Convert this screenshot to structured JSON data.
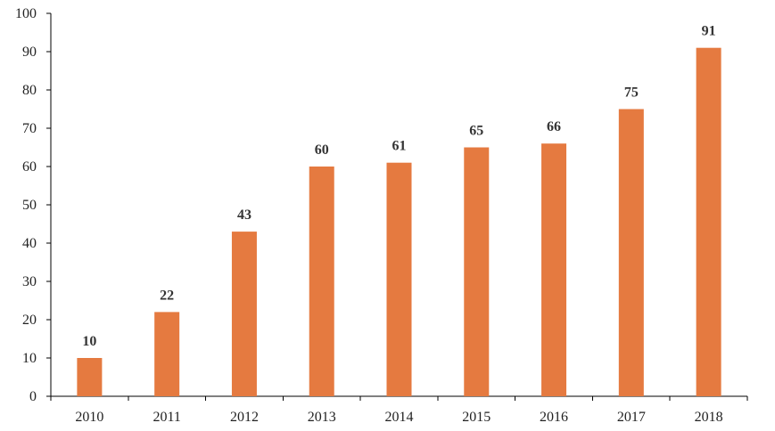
{
  "chart_data": {
    "type": "bar",
    "title": "",
    "xlabel": "",
    "ylabel": "",
    "categories": [
      "2010",
      "2011",
      "2012",
      "2013",
      "2014",
      "2015",
      "2016",
      "2017",
      "2018"
    ],
    "values": [
      10,
      22,
      43,
      60,
      61,
      65,
      66,
      75,
      91
    ],
    "ylim": [
      0,
      100
    ],
    "yticks": [
      0,
      10,
      20,
      30,
      40,
      50,
      60,
      70,
      80,
      90,
      100
    ],
    "grid": false,
    "legend": "none",
    "data_labels": true,
    "bar_color": "#E57A40"
  }
}
